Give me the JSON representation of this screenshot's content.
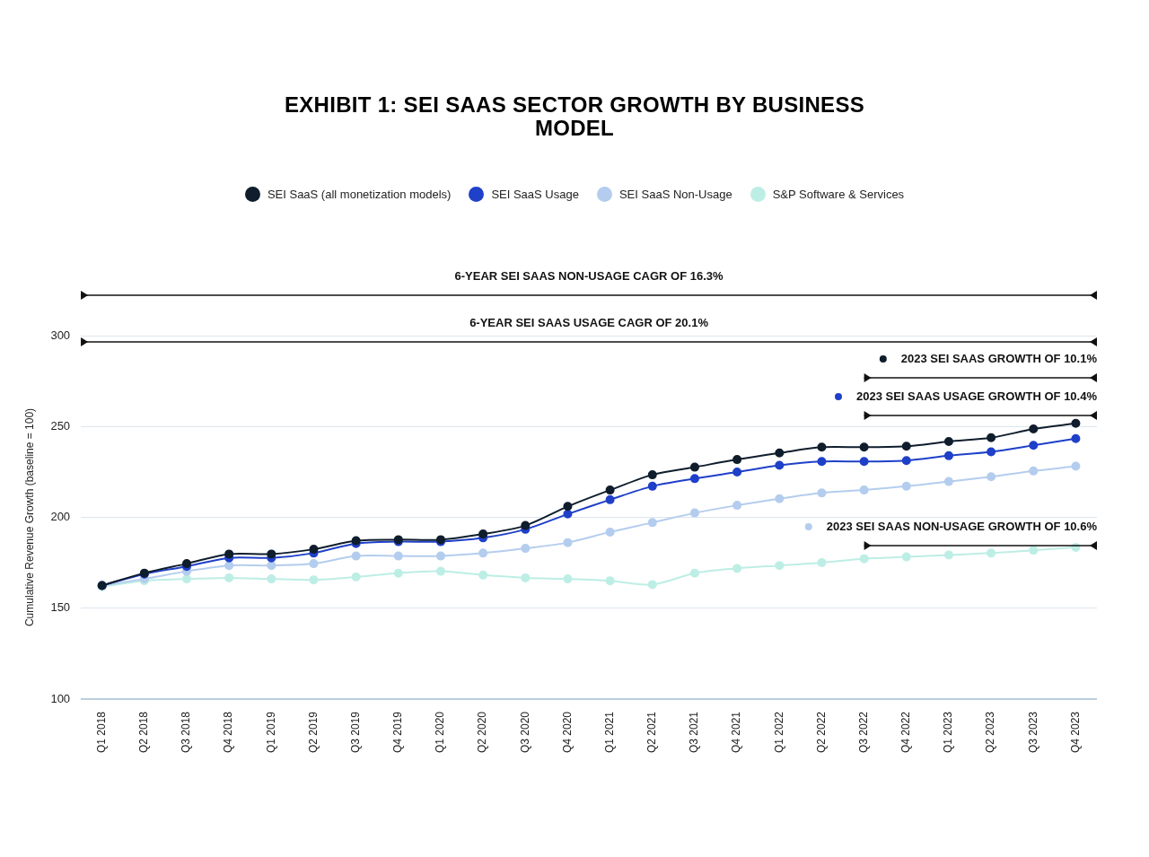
{
  "chart_data": {
    "type": "line",
    "title": "EXHIBIT 1: SEI SAAS SECTOR GROWTH BY BUSINESS MODEL",
    "y_label": "Cumulative Revenue Growth (baseline = 100)",
    "categories": [
      "Q1 2018",
      "Q2 2018",
      "Q3 2018",
      "Q4 2018",
      "Q1 2019",
      "Q2 2019",
      "Q3 2019",
      "Q4 2019",
      "Q1 2020",
      "Q2 2020",
      "Q3 2020",
      "Q4 2020",
      "Q1 2021",
      "Q2 2021",
      "Q3 2021",
      "Q4 2021",
      "Q1 2022",
      "Q2 2022",
      "Q3 2022",
      "Q4 2022",
      "Q1 2023",
      "Q2 2023",
      "Q3 2023",
      "Q4 2023"
    ],
    "series": [
      {
        "name": "SEI SaaS (all monetization models)",
        "color": "#0f1d2c",
        "values": [
          162.5,
          169.3,
          174.5,
          179.8,
          179.8,
          182.4,
          187.1,
          187.7,
          187.7,
          190.8,
          195.5,
          206,
          215,
          223.4,
          227.6,
          231.8,
          235.4,
          238.6,
          238.6,
          239.1,
          241.7,
          243.8,
          248.6,
          251.7
        ]
      },
      {
        "name": "SEI SaaS Usage",
        "color": "#1f40c8",
        "values": [
          162.5,
          168.8,
          173,
          177.7,
          177.7,
          180.3,
          185.6,
          186.6,
          186.6,
          188.7,
          193.4,
          201.8,
          209.7,
          217.1,
          221.3,
          224.9,
          228.6,
          230.7,
          230.7,
          231.2,
          233.9,
          236,
          239.6,
          243.3
        ]
      },
      {
        "name": "SEI SaaS Non-Usage",
        "color": "#b4cdee",
        "values": [
          162.5,
          166.1,
          170.3,
          173.5,
          173.5,
          174.5,
          178.7,
          178.7,
          178.7,
          180.3,
          182.9,
          186.1,
          191.9,
          197.1,
          202.4,
          206.6,
          210.2,
          213.4,
          215,
          217.1,
          219.7,
          222.3,
          225.5,
          228.1
        ]
      },
      {
        "name": "S&P Software & Services",
        "color": "#bdeee5",
        "values": [
          161.9,
          165.1,
          166.1,
          166.7,
          166.1,
          165.6,
          167.2,
          169.3,
          170.3,
          168.2,
          166.7,
          166.1,
          165.1,
          163,
          169.3,
          171.9,
          173.5,
          175.1,
          177.2,
          178.2,
          179.3,
          180.3,
          181.9,
          183.5
        ]
      }
    ],
    "ylim": [
      100,
      300
    ],
    "yticks": [
      100,
      150,
      200,
      250,
      300
    ],
    "grid": true,
    "legend": "top",
    "marker": "circle",
    "annotations": [
      {
        "text": "6-YEAR SEI SAAS NON-USAGE CAGR OF 16.3%",
        "from": "Q1 2018",
        "to": "Q4 2023"
      },
      {
        "text": "6-YEAR SEI SAAS USAGE CAGR OF 20.1%",
        "from": "Q1 2018",
        "to": "Q4 2023"
      },
      {
        "text": "2023 SEI SAAS GROWTH OF 10.1%",
        "from": "Q3 2022",
        "to": "Q4 2023",
        "color": "#0f1d2c"
      },
      {
        "text": "2023 SEI SAAS USAGE GROWTH OF 10.4%",
        "from": "Q3 2022",
        "to": "Q4 2023",
        "color": "#1f40c8"
      },
      {
        "text": "2023 SEI SAAS NON-USAGE GROWTH OF 10.6%",
        "from": "Q3 2022",
        "to": "Q4 2023",
        "color": "#b4cdee"
      }
    ]
  }
}
